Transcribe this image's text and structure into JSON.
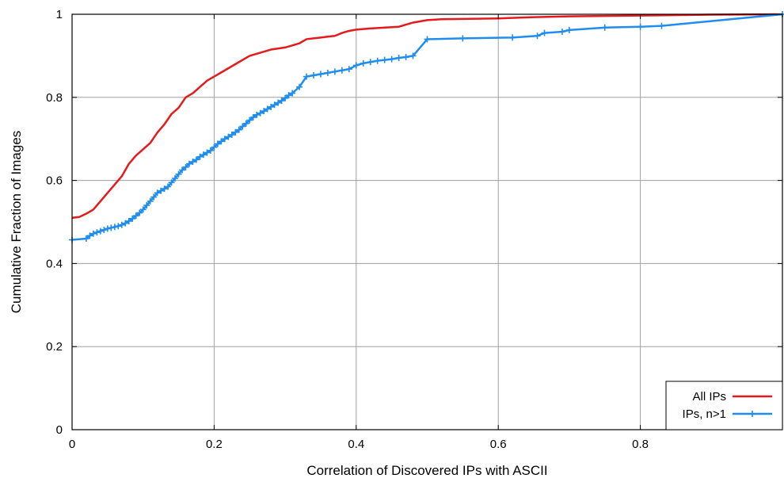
{
  "chart_data": {
    "type": "line",
    "xlabel": "Correlation of Discovered IPs with ASCII",
    "ylabel": "Cumulative Fraction of Images",
    "xlim": [
      0,
      1
    ],
    "ylim": [
      0,
      1
    ],
    "grid": true,
    "legend_position": "bottom-right",
    "x_ticks": [
      {
        "value": 0,
        "label": "0"
      },
      {
        "value": 0.2,
        "label": "0.2"
      },
      {
        "value": 0.4,
        "label": "0.4"
      },
      {
        "value": 0.6,
        "label": "0.6"
      },
      {
        "value": 0.8,
        "label": "0.8"
      }
    ],
    "y_ticks": [
      {
        "value": 0,
        "label": "0"
      },
      {
        "value": 0.2,
        "label": "0.2"
      },
      {
        "value": 0.4,
        "label": "0.4"
      },
      {
        "value": 0.6,
        "label": "0.6"
      },
      {
        "value": 0.8,
        "label": "0.8"
      },
      {
        "value": 1,
        "label": "1"
      }
    ],
    "series": [
      {
        "name": "All IPs",
        "color": "#e41a1c",
        "marker": "none",
        "x": [
          0,
          0.01,
          0.02,
          0.025,
          0.03,
          0.04,
          0.05,
          0.06,
          0.07,
          0.08,
          0.09,
          0.1,
          0.11,
          0.12,
          0.13,
          0.14,
          0.15,
          0.16,
          0.17,
          0.18,
          0.19,
          0.2,
          0.21,
          0.22,
          0.23,
          0.24,
          0.25,
          0.26,
          0.27,
          0.28,
          0.3,
          0.31,
          0.32,
          0.33,
          0.34,
          0.35,
          0.36,
          0.37,
          0.38,
          0.39,
          0.4,
          0.42,
          0.46,
          0.48,
          0.5,
          0.52,
          0.6,
          0.65,
          0.7,
          0.8,
          0.9,
          1.0
        ],
        "y": [
          0.51,
          0.512,
          0.52,
          0.525,
          0.53,
          0.55,
          0.57,
          0.59,
          0.61,
          0.64,
          0.66,
          0.675,
          0.69,
          0.715,
          0.735,
          0.76,
          0.775,
          0.8,
          0.81,
          0.825,
          0.84,
          0.85,
          0.86,
          0.87,
          0.88,
          0.89,
          0.9,
          0.905,
          0.91,
          0.915,
          0.92,
          0.925,
          0.93,
          0.94,
          0.942,
          0.944,
          0.946,
          0.948,
          0.955,
          0.96,
          0.963,
          0.966,
          0.97,
          0.98,
          0.986,
          0.988,
          0.99,
          0.993,
          0.995,
          0.997,
          0.999,
          1.0
        ]
      },
      {
        "name": "IPs, n>1",
        "color": "#1f8ded",
        "marker": "plus",
        "x": [
          0,
          0.02,
          0.025,
          0.03,
          0.035,
          0.04,
          0.045,
          0.05,
          0.055,
          0.06,
          0.065,
          0.07,
          0.075,
          0.08,
          0.085,
          0.09,
          0.095,
          0.1,
          0.105,
          0.11,
          0.115,
          0.12,
          0.125,
          0.13,
          0.135,
          0.14,
          0.145,
          0.15,
          0.155,
          0.16,
          0.165,
          0.17,
          0.175,
          0.18,
          0.185,
          0.19,
          0.195,
          0.2,
          0.205,
          0.21,
          0.215,
          0.22,
          0.225,
          0.23,
          0.235,
          0.24,
          0.245,
          0.25,
          0.255,
          0.26,
          0.265,
          0.27,
          0.275,
          0.28,
          0.285,
          0.29,
          0.295,
          0.3,
          0.305,
          0.31,
          0.32,
          0.33,
          0.34,
          0.35,
          0.36,
          0.37,
          0.38,
          0.39,
          0.4,
          0.41,
          0.42,
          0.43,
          0.44,
          0.45,
          0.46,
          0.47,
          0.48,
          0.5,
          0.55,
          0.62,
          0.655,
          0.665,
          0.69,
          0.7,
          0.75,
          0.8,
          0.83,
          1.0
        ],
        "y": [
          0.457,
          0.46,
          0.467,
          0.472,
          0.475,
          0.478,
          0.481,
          0.484,
          0.486,
          0.488,
          0.49,
          0.493,
          0.497,
          0.502,
          0.508,
          0.515,
          0.522,
          0.53,
          0.54,
          0.55,
          0.56,
          0.57,
          0.575,
          0.58,
          0.585,
          0.595,
          0.605,
          0.615,
          0.625,
          0.632,
          0.64,
          0.645,
          0.65,
          0.657,
          0.662,
          0.667,
          0.672,
          0.68,
          0.688,
          0.694,
          0.7,
          0.705,
          0.71,
          0.716,
          0.722,
          0.73,
          0.737,
          0.745,
          0.752,
          0.758,
          0.762,
          0.767,
          0.772,
          0.777,
          0.782,
          0.787,
          0.792,
          0.798,
          0.805,
          0.81,
          0.825,
          0.85,
          0.853,
          0.856,
          0.859,
          0.862,
          0.865,
          0.868,
          0.877,
          0.882,
          0.885,
          0.888,
          0.89,
          0.892,
          0.895,
          0.897,
          0.9,
          0.94,
          0.942,
          0.944,
          0.948,
          0.955,
          0.958,
          0.962,
          0.968,
          0.97,
          0.972,
          1.0
        ]
      }
    ]
  }
}
